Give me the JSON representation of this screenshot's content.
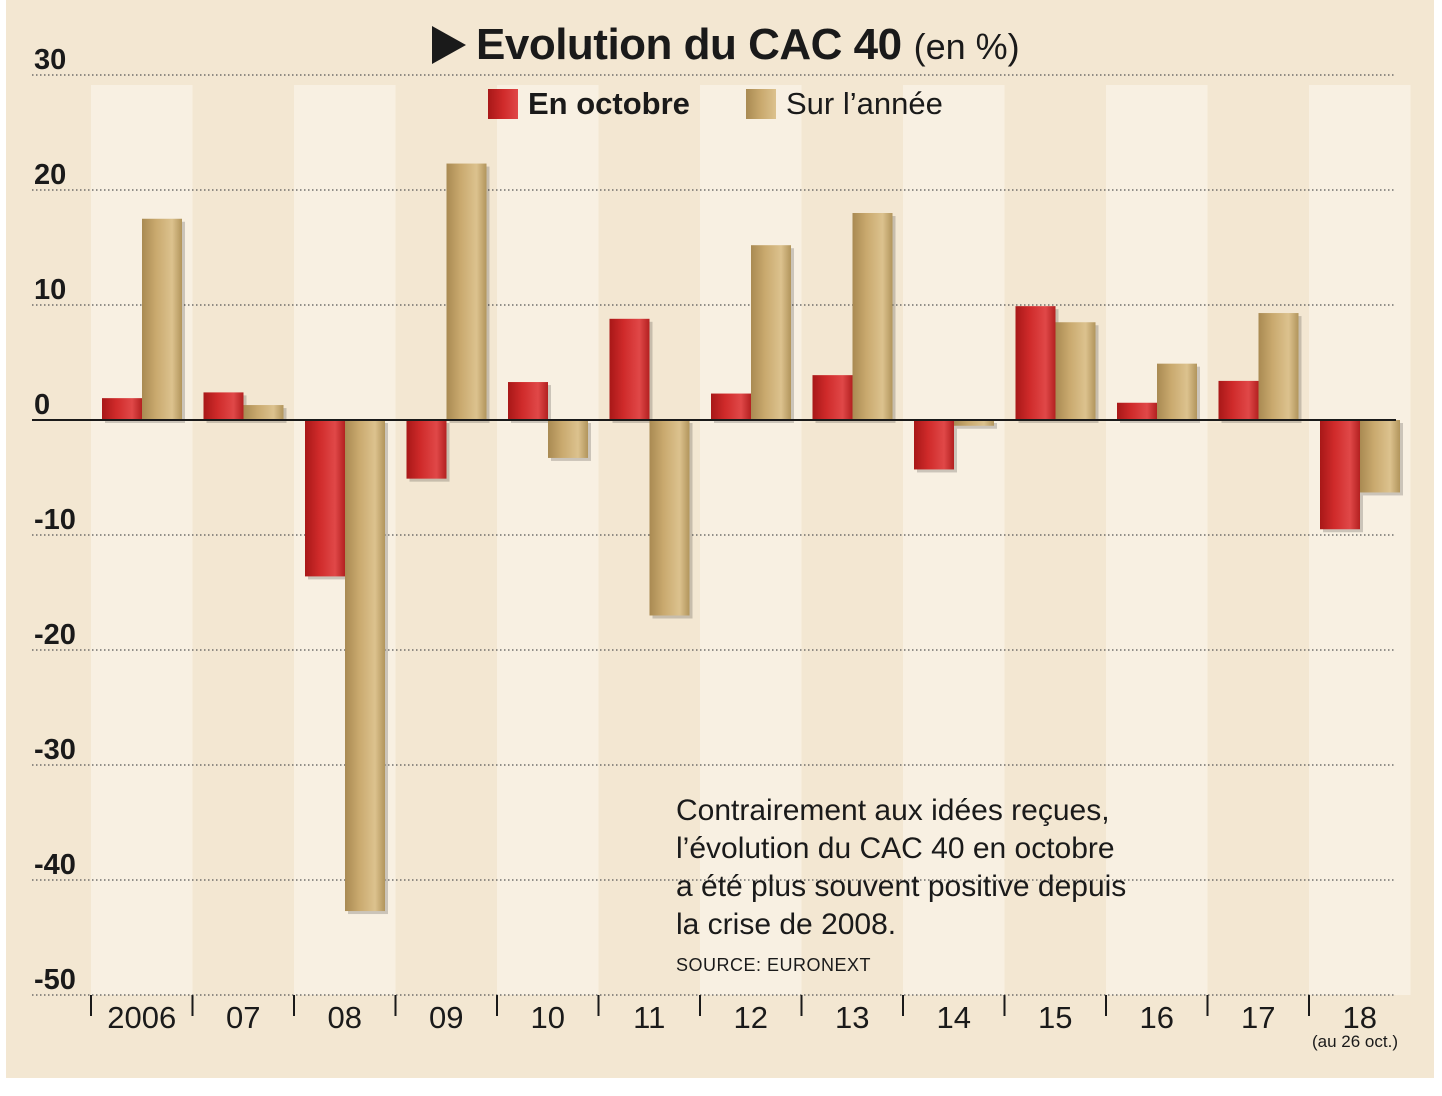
{
  "chart_data": {
    "type": "bar",
    "title": "Evolution du CAC 40",
    "title_unit": "(en %)",
    "categories": [
      "2006",
      "07",
      "08",
      "09",
      "10",
      "11",
      "12",
      "13",
      "14",
      "15",
      "16",
      "17",
      "18"
    ],
    "category_note": "(au 26 oct.)",
    "series": [
      {
        "name": "En octobre",
        "color": "#cf2a2a",
        "values": [
          1.9,
          2.4,
          -13.6,
          -5.1,
          3.3,
          8.8,
          2.3,
          3.9,
          -4.3,
          9.9,
          1.5,
          3.4,
          -9.5
        ]
      },
      {
        "name": "Sur l’année",
        "color": "#c9a96e",
        "values": [
          17.5,
          1.3,
          -42.7,
          22.3,
          -3.3,
          -17.0,
          15.2,
          18.0,
          -0.5,
          8.5,
          4.9,
          9.3,
          -6.3
        ]
      }
    ],
    "ylim": [
      -50,
      30
    ],
    "yticks": [
      "30",
      "20",
      "10",
      "0",
      "-10",
      "-20",
      "-30",
      "-40",
      "-50"
    ],
    "ytick_values": [
      30,
      20,
      10,
      0,
      -10,
      -20,
      -30,
      -40,
      -50
    ],
    "xlabel": "",
    "ylabel": "",
    "grid": true,
    "legend_position": "top-center",
    "annotation_lines": [
      "Contrairement aux idées reçues,",
      "l’évolution du CAC 40 en octobre",
      "a été plus souvent positive depuis",
      "la crise de 2008."
    ],
    "source": "SOURCE: EURONEXT"
  }
}
